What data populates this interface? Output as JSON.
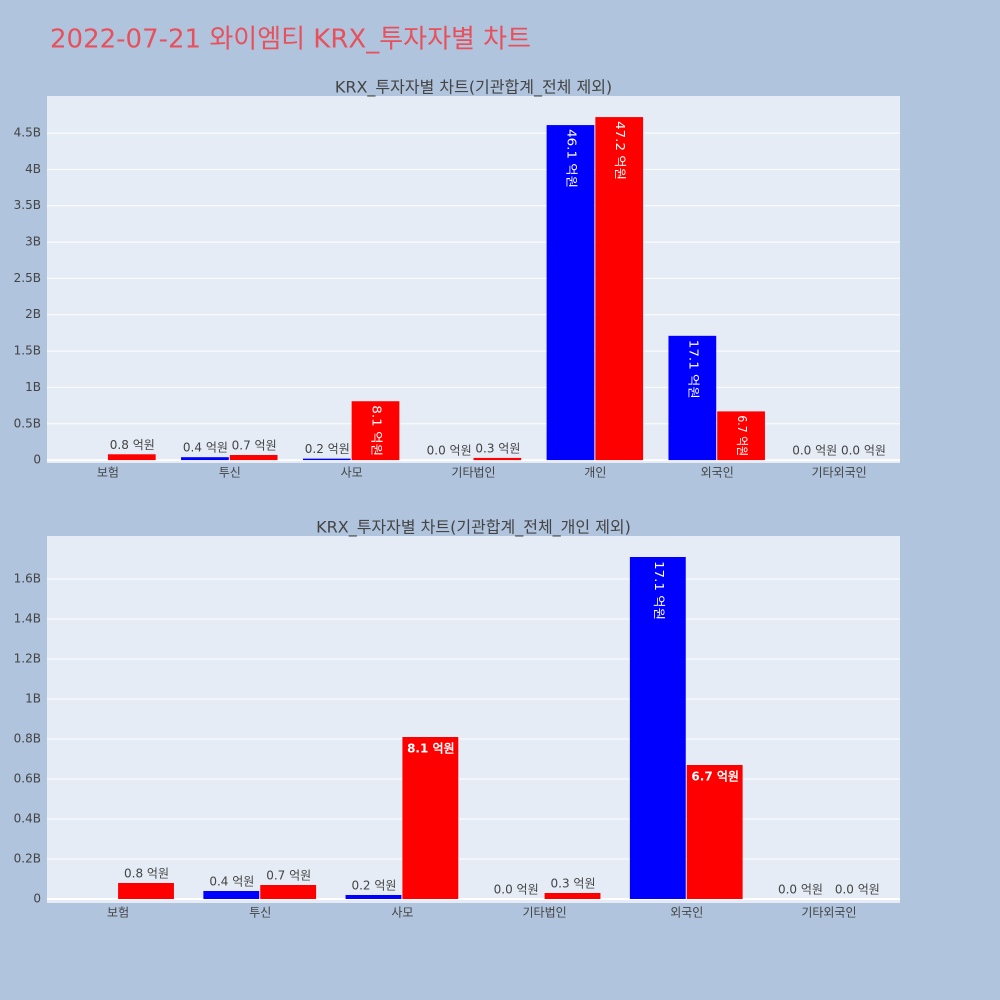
{
  "title": "2022-07-21 와이엠티 KRX_투자자별 차트",
  "chart_data": [
    {
      "type": "bar",
      "title": "KRX_투자자별 차트(기관합계_전체 제외)",
      "categories": [
        "보험",
        "투신",
        "사모",
        "기타법인",
        "개인",
        "외국인",
        "기타외국인"
      ],
      "series": [
        {
          "color": "#0000ff",
          "values": [
            null,
            40000000,
            20000000,
            0,
            4610000000,
            1710000000,
            0
          ],
          "value_labels": [
            null,
            "0.4 억원",
            "0.2 억원",
            "0.0 억원",
            "46.1 억원",
            "17.1 억원",
            "0.0 억원"
          ]
        },
        {
          "color": "#ff0000",
          "values": [
            80000000,
            70000000,
            810000000,
            30000000,
            4720000000,
            670000000,
            0
          ],
          "value_labels": [
            "0.8 억원",
            "0.7 억원",
            "8.1 억원",
            "0.3 억원",
            "47.2 억원",
            "6.7 억원",
            "0.0 억원"
          ]
        }
      ],
      "ylim": [
        -40000000,
        5010000000
      ],
      "yticks": [
        0,
        {
          "value": 500000000,
          "label": "0.5B"
        },
        {
          "value": 1000000000,
          "label": "1B"
        },
        {
          "value": 1500000000,
          "label": "1.5B"
        },
        {
          "value": 2000000000,
          "label": "2B"
        },
        {
          "value": 2500000000,
          "label": "2.5B"
        },
        {
          "value": 3000000000,
          "label": "3B"
        },
        {
          "value": 3500000000,
          "label": "3.5B"
        },
        {
          "value": 4000000000,
          "label": "4B"
        },
        {
          "value": 4500000000,
          "label": "4.5B"
        }
      ],
      "grid": true
    },
    {
      "type": "bar",
      "title": "KRX_투자자별 차트(기관합계_전체_개인 제외)",
      "categories": [
        "보험",
        "투신",
        "사모",
        "기타법인",
        "외국인",
        "기타외국인"
      ],
      "series": [
        {
          "color": "#0000ff",
          "values": [
            null,
            40000000,
            20000000,
            0,
            1710000000,
            0
          ],
          "value_labels": [
            null,
            "0.4 억원",
            "0.2 억원",
            "0.0 억원",
            "17.1 억원",
            "0.0 억원"
          ]
        },
        {
          "color": "#ff0000",
          "values": [
            80000000,
            70000000,
            810000000,
            30000000,
            670000000,
            0
          ],
          "value_labels": [
            "0.8 억원",
            "0.7 억원",
            "8.1 억원",
            "0.3 억원",
            "6.7 억원",
            "0.0 억원"
          ]
        }
      ],
      "ylim": [
        -20000000,
        1815000000
      ],
      "yticks": [
        0,
        {
          "value": 200000000,
          "label": "0.2B"
        },
        {
          "value": 400000000,
          "label": "0.4B"
        },
        {
          "value": 600000000,
          "label": "0.6B"
        },
        {
          "value": 800000000,
          "label": "0.8B"
        },
        {
          "value": 1000000000,
          "label": "1B"
        },
        {
          "value": 1200000000,
          "label": "1.2B"
        },
        {
          "value": 1400000000,
          "label": "1.4B"
        },
        {
          "value": 1600000000,
          "label": "1.6B"
        }
      ],
      "grid": true
    }
  ]
}
